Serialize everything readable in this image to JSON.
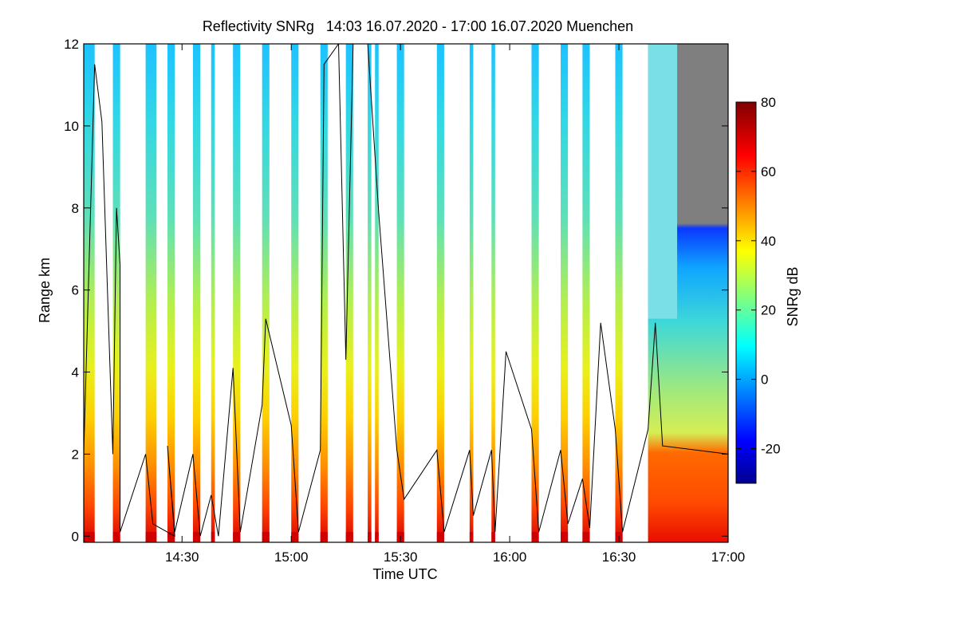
{
  "chart_data": {
    "type": "heatmap",
    "title": "Reflectivity SNRg   14:03 16.07.2020 - 17:00 16.07.2020 Muenchen",
    "xlabel": "Time UTC",
    "ylabel": "Range km",
    "xlim": [
      "14:03",
      "17:00"
    ],
    "ylim": [
      -0.15,
      12
    ],
    "x_ticks": [
      "14:30",
      "15:00",
      "15:30",
      "16:00",
      "16:30",
      "17:00"
    ],
    "y_ticks": [
      "0",
      "2",
      "4",
      "6",
      "8",
      "10",
      "12"
    ],
    "colorbar": {
      "label": "SNRg dB",
      "range": [
        -30,
        80
      ],
      "ticks": [
        "-20",
        "0",
        "20",
        "40",
        "60",
        "80"
      ],
      "colormap": "jet"
    },
    "data_strips_utc": [
      [
        "14:03",
        "14:06"
      ],
      [
        "14:11",
        "14:13"
      ],
      [
        "14:20",
        "14:23"
      ],
      [
        "14:26",
        "14:28"
      ],
      [
        "14:33",
        "14:35"
      ],
      [
        "14:38",
        "14:39"
      ],
      [
        "14:44",
        "14:46"
      ],
      [
        "14:52",
        "14:54"
      ],
      [
        "15:00",
        "15:02"
      ],
      [
        "15:08",
        "15:10"
      ],
      [
        "15:15",
        "15:17"
      ],
      [
        "15:21",
        "15:22"
      ],
      [
        "15:23",
        "15:24"
      ],
      [
        "15:29",
        "15:31"
      ],
      [
        "15:40",
        "15:42"
      ],
      [
        "15:49",
        "15:50"
      ],
      [
        "15:55",
        "15:56"
      ],
      [
        "16:06",
        "16:08"
      ],
      [
        "16:14",
        "16:16"
      ],
      [
        "16:20",
        "16:22"
      ],
      [
        "16:29",
        "16:31"
      ],
      [
        "16:38",
        "17:00"
      ]
    ],
    "overlay_line_km": [
      [
        "14:03",
        2.0
      ],
      [
        "14:06",
        11.5
      ],
      [
        "14:08",
        10.1
      ],
      [
        "14:11",
        2.0
      ],
      [
        "14:12",
        8.0
      ],
      [
        "14:13",
        6.6
      ],
      [
        "14:13",
        0.1
      ],
      [
        "14:20",
        2.0
      ],
      [
        "14:22",
        0.3
      ],
      [
        "14:28",
        0.0
      ],
      [
        "14:26",
        2.2
      ],
      [
        "14:28",
        0.1
      ],
      [
        "14:33",
        2.0
      ],
      [
        "14:35",
        0.0
      ],
      [
        "14:38",
        1.0
      ],
      [
        "14:40",
        0.0
      ],
      [
        "14:44",
        4.1
      ],
      [
        "14:46",
        0.1
      ],
      [
        "14:52",
        3.2
      ],
      [
        "14:53",
        5.3
      ],
      [
        "15:00",
        2.7
      ],
      [
        "15:02",
        0.1
      ],
      [
        "15:08",
        2.1
      ],
      [
        "15:09",
        11.5
      ],
      [
        "15:13",
        12.0
      ],
      [
        "15:15",
        4.3
      ],
      [
        "15:17",
        12.0
      ],
      [
        "15:21",
        12.0
      ],
      [
        "15:24",
        7.9
      ],
      [
        "15:29",
        2.1
      ],
      [
        "15:31",
        0.9
      ],
      [
        "15:40",
        2.1
      ],
      [
        "15:42",
        0.1
      ],
      [
        "15:49",
        2.1
      ],
      [
        "15:50",
        0.5
      ],
      [
        "15:55",
        2.1
      ],
      [
        "15:56",
        0.1
      ],
      [
        "15:59",
        4.5
      ],
      [
        "16:06",
        2.6
      ],
      [
        "16:08",
        0.1
      ],
      [
        "16:14",
        2.1
      ],
      [
        "16:16",
        0.3
      ],
      [
        "16:20",
        1.4
      ],
      [
        "16:22",
        0.2
      ],
      [
        "16:25",
        5.2
      ],
      [
        "16:29",
        2.6
      ],
      [
        "16:31",
        0.1
      ],
      [
        "16:38",
        2.6
      ],
      [
        "16:40",
        5.2
      ],
      [
        "16:42",
        2.2
      ],
      [
        "17:00",
        2.0
      ]
    ]
  }
}
